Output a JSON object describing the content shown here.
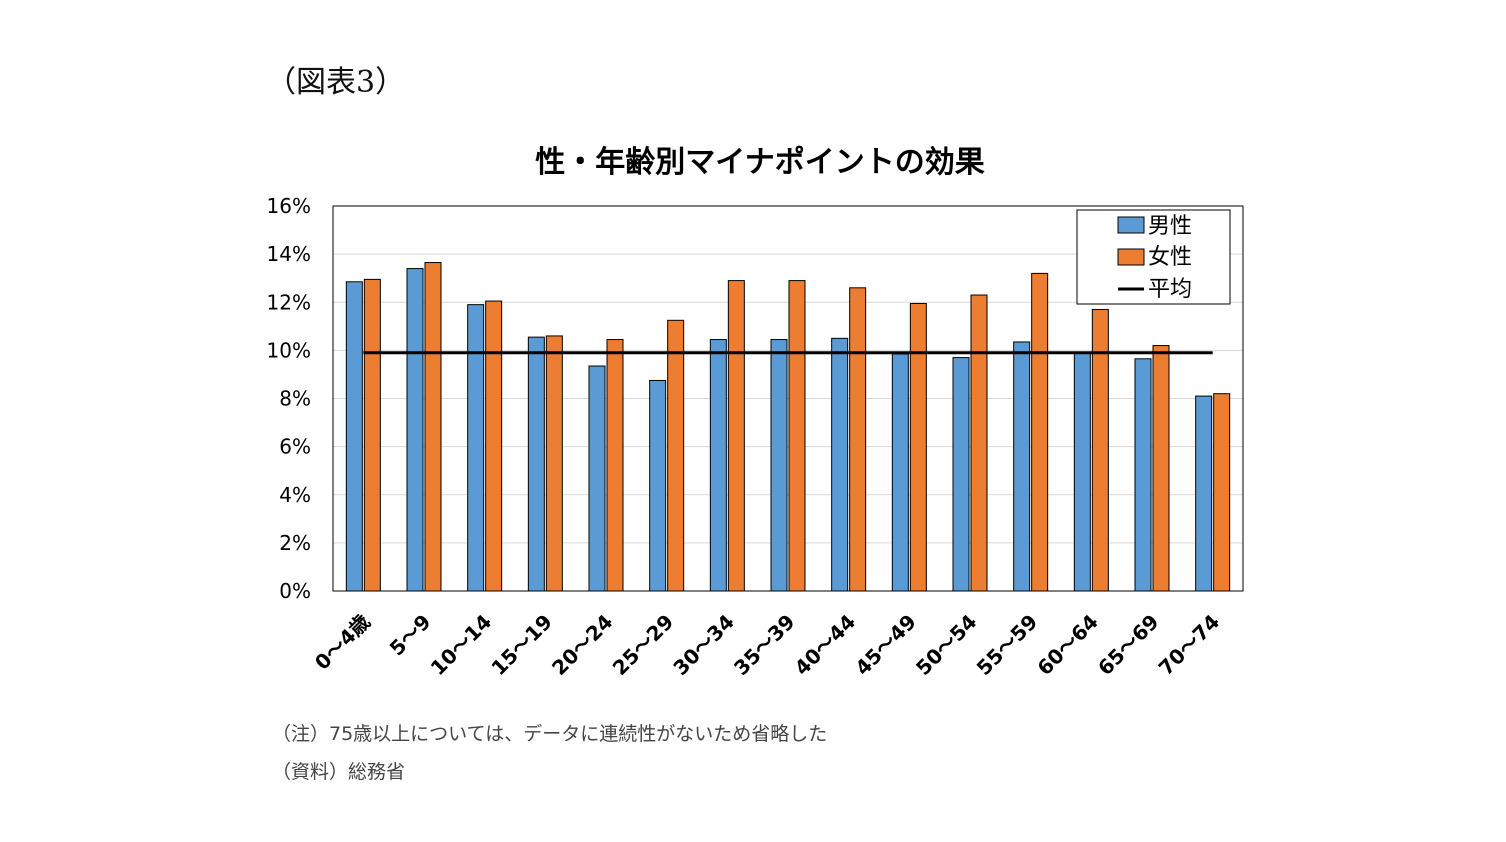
{
  "figure_label": "（図表3）",
  "notes": {
    "note": "（注）75歳以上については、データに連続性がないため省略した",
    "source": "（資料）総務省"
  },
  "colors": {
    "male": "#5B9BD5",
    "female": "#ED7D31",
    "average": "#000000",
    "bar_outline": "#000000",
    "grid": "#d9d9d9"
  },
  "chart_data": {
    "type": "bar",
    "title": "性・年齢別マイナポイントの効果",
    "categories": [
      "0～4歳",
      "5～9",
      "10～14",
      "15～19",
      "20～24",
      "25～29",
      "30～34",
      "35～39",
      "40～44",
      "45～49",
      "50～54",
      "55～59",
      "60～64",
      "65～69",
      "70～74"
    ],
    "series": [
      {
        "name": "男性",
        "values": [
          12.85,
          13.4,
          11.9,
          10.55,
          9.35,
          8.75,
          10.45,
          10.45,
          10.5,
          9.85,
          9.7,
          10.35,
          9.9,
          9.65,
          8.1
        ]
      },
      {
        "name": "女性",
        "values": [
          12.95,
          13.65,
          12.05,
          10.6,
          10.45,
          11.25,
          12.9,
          12.9,
          12.6,
          11.95,
          12.3,
          13.2,
          11.7,
          10.2,
          8.2
        ]
      }
    ],
    "average": {
      "name": "平均",
      "value": 9.9
    },
    "ylim": [
      0,
      16
    ],
    "yticks": [
      0,
      2,
      4,
      6,
      8,
      10,
      12,
      14,
      16
    ],
    "ytick_labels": [
      "0%",
      "2%",
      "4%",
      "6%",
      "8%",
      "10%",
      "12%",
      "14%",
      "16%"
    ],
    "xlabel": "",
    "ylabel": "",
    "grid": true,
    "legend_position": "top-right"
  }
}
